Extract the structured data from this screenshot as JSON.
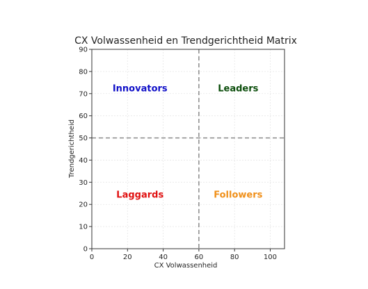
{
  "chart_data": {
    "type": "scatter",
    "title": "CX Volwassenheid en Trendgerichtheid Matrix",
    "xlabel": "CX Volwassenheid",
    "ylabel": "Trendgerichtheid",
    "xlim": [
      0,
      108
    ],
    "ylim": [
      0,
      90
    ],
    "xticks": [
      0,
      20,
      40,
      60,
      80,
      100
    ],
    "yticks": [
      0,
      10,
      20,
      30,
      40,
      50,
      60,
      70,
      80,
      90
    ],
    "grid": true,
    "divider_x": 60,
    "divider_y": 50,
    "quadrant_labels": [
      {
        "text": "Innovators",
        "x": 27,
        "y": 72.5,
        "color": "#1010c8"
      },
      {
        "text": "Leaders",
        "x": 82,
        "y": 72.5,
        "color": "#0b4d0b"
      },
      {
        "text": "Laggards",
        "x": 27,
        "y": 24.5,
        "color": "#e01010"
      },
      {
        "text": "Followers",
        "x": 82,
        "y": 24.5,
        "color": "#f0901a"
      }
    ]
  }
}
